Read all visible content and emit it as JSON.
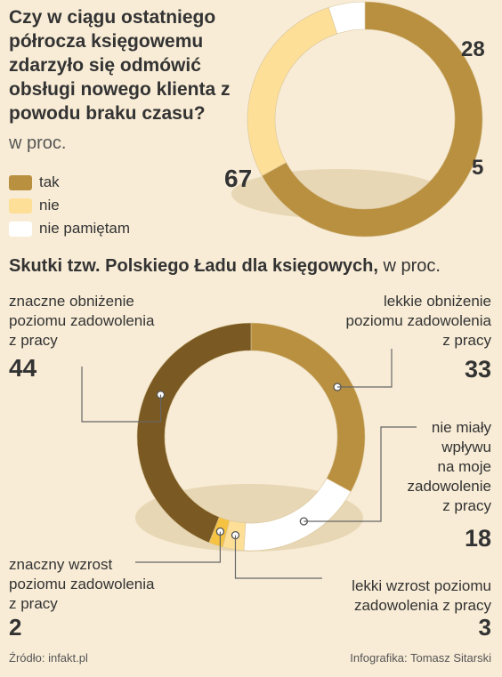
{
  "chart_data": [
    {
      "type": "pie",
      "title": "Czy w ciągu ostatniego półrocza księgowemu zdarzyło się odmówić obsługi nowego klienta z powodu braku czasu?",
      "unit": "w proc.",
      "categories": [
        "tak",
        "nie",
        "nie pamiętam"
      ],
      "values": [
        67,
        28,
        5
      ],
      "value_labels": [
        "67",
        "28",
        "5"
      ],
      "colors": [
        "#b9903f",
        "#fddf98",
        "#ffffff"
      ]
    },
    {
      "type": "pie",
      "title": "Skutki tzw. Polskiego Ładu dla księgowych,",
      "unit": "w proc.",
      "categories": [
        "lekkie obniżenie poziomu zadowolenia z pracy",
        "nie miały wpływu na moje zadowolenie z pracy",
        "lekki wzrost poziomu zadowolenia z pracy",
        "znaczny wzrost poziomu zadowolenia z pracy",
        "znaczne obniżenie poziomu zadowolenia z pracy"
      ],
      "values": [
        33,
        18,
        3,
        2,
        44
      ],
      "colors": [
        "#b9903f",
        "#ffffff",
        "#fddf98",
        "#f5c242",
        "#7a5a22"
      ]
    }
  ],
  "chart2_labels": {
    "lekkie_obnizenie": [
      "lekkie obniżenie",
      "poziomu zadowolenia",
      "z pracy"
    ],
    "lekkie_obnizenie_value": "33",
    "brak_wplywu": [
      "nie miały",
      "wpływu",
      "na moje",
      "zadowolenie",
      "z pracy"
    ],
    "brak_wplywu_value": "18",
    "lekki_wzrost": [
      "lekki wzrost poziomu",
      "zadowolenia z pracy"
    ],
    "lekki_wzrost_value": "3",
    "znaczny_wzrost": [
      "znaczny wzrost",
      "poziomu zadowolenia",
      "z pracy"
    ],
    "znaczny_wzrost_value": "2",
    "znaczne_obnizenie": [
      "znaczne obniżenie",
      "poziomu zadowolenia",
      "z pracy"
    ],
    "znaczne_obnizenie_value": "44"
  },
  "footer": {
    "source": "Źródło: infakt.pl",
    "credit": "Infografika: Tomasz Sitarski"
  }
}
